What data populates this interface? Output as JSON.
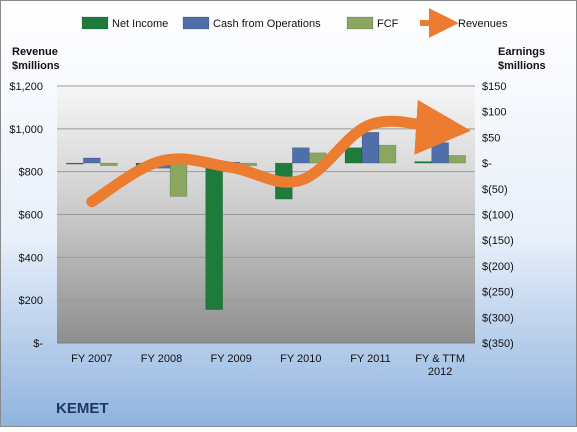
{
  "chart_data": {
    "type": "bar",
    "company": "KEMET",
    "categories": [
      "FY 2007",
      "FY 2008",
      "FY 2009",
      "FY 2010",
      "FY 2011",
      "FY & TTM 2012"
    ],
    "category_lines": [
      [
        "FY 2007"
      ],
      [
        "FY 2008"
      ],
      [
        "FY 2009"
      ],
      [
        "FY 2010"
      ],
      [
        "FY 2011"
      ],
      [
        "FY & TTM",
        "2012"
      ]
    ],
    "series": [
      {
        "name": "Net Income",
        "axis": "right",
        "color": "#1e7b3c",
        "values": [
          -2,
          -10,
          -285,
          -70,
          30,
          3
        ]
      },
      {
        "name": "Cash from Operations",
        "axis": "right",
        "color": "#4f6fa8",
        "values": [
          10,
          -10,
          2,
          30,
          60,
          40
        ]
      },
      {
        "name": "FCF",
        "axis": "right",
        "color": "#8aa661",
        "values": [
          -5,
          -65,
          -5,
          20,
          35,
          15
        ]
      }
    ],
    "line_series": {
      "name": "Revenues",
      "axis": "left",
      "color": "#ec7c30",
      "values": [
        660,
        850,
        820,
        760,
        1020,
        1000
      ]
    },
    "left_axis": {
      "title_lines": [
        "Revenue",
        "$millions"
      ],
      "ticks": [
        "$-",
        "$200",
        "$400",
        "$600",
        "$800",
        "$1,000",
        "$1,200"
      ],
      "min": 0,
      "max": 1200
    },
    "right_axis": {
      "title_lines": [
        "Earnings",
        "$millions"
      ],
      "ticks": [
        "$(350)",
        "$(300)",
        "$(250)",
        "$(200)",
        "$(150)",
        "$(100)",
        "$(50)",
        "$-",
        "$50",
        "$100",
        "$150"
      ],
      "min": -350,
      "max": 150
    },
    "legend_position": "top",
    "grid": true
  }
}
